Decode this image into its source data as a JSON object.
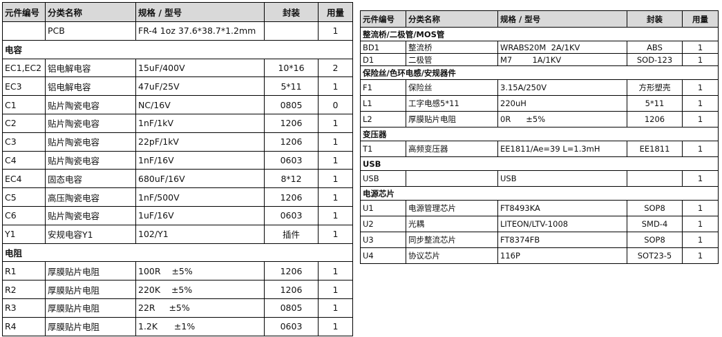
{
  "left": {
    "header": [
      "元件编号",
      "分类名称",
      "规格 / 型号",
      "封装",
      "用量"
    ],
    "rows": [
      [
        null,
        "PCB",
        "FR-4 1oz 37.6*38.7*1.2mm",
        null,
        "1"
      ],
      [
        "电容"
      ],
      [
        "EC1,EC2",
        "铝电解电容",
        "15uF/400V",
        "10*16",
        "2"
      ],
      [
        "EC3",
        "铝电解电容",
        "47uF/25V",
        "5*11",
        "1"
      ],
      [
        "C1",
        "贴片陶瓷电容",
        "NC/16V",
        "0805",
        "0"
      ],
      [
        "C2",
        "贴片陶瓷电容",
        "1nF/1kV",
        "1206",
        "1"
      ],
      [
        "C3",
        "贴片陶瓷电容",
        "22pF/1kV",
        "1206",
        "1"
      ],
      [
        "C4",
        "贴片陶瓷电容",
        "1nF/16V",
        "0603",
        "1"
      ],
      [
        "EC4",
        "固态电容",
        "680uF/16V",
        "8*12",
        "1"
      ],
      [
        "C5",
        "高压陶瓷电容",
        "1nF/500V",
        "1206",
        "1"
      ],
      [
        "C6",
        "贴片陶瓷电容",
        "1uF/16V",
        "0603",
        "1"
      ],
      [
        "Y1",
        "安规电容Y1",
        "102/Y1",
        "插件",
        "1"
      ],
      [
        "电阻"
      ],
      [
        "R1",
        "厚膜贴片电阻",
        "100R    ±5%",
        "1206",
        "1"
      ],
      [
        "R2",
        "厚膜贴片电阻",
        "220K    ±5%",
        "1206",
        "1"
      ],
      [
        "R3",
        "厚膜贴片电阻",
        "22R     ±5%",
        "0805",
        "1"
      ],
      [
        "R4",
        "厚膜贴片电阻",
        "1.2K      ±1%",
        "0603",
        "1"
      ]
    ]
  },
  "right": {
    "header": [
      "元件编号",
      "分类名称",
      "规格 / 型号",
      "封装",
      "用量"
    ],
    "rows": [
      [
        "整流桥/二极管/MOS管"
      ],
      [
        "BD1",
        "整流桥",
        "WRABS20M  2A/1KV",
        "ABS",
        "1"
      ],
      [
        "D1",
        "二极管",
        "M7        1A/1KV",
        "SOD-123",
        "1"
      ],
      [
        "保险丝/色环电感/安规器件"
      ],
      [
        "F1",
        "保险丝",
        "3.15A/250V",
        "方形塑壳",
        "1"
      ],
      [
        "L1",
        "工字电感5*11",
        "220uH",
        "5*11",
        "1"
      ],
      [
        "L2",
        "厚膜贴片电阻",
        "0R      ±5%",
        "1206",
        "1"
      ],
      [
        "变压器"
      ],
      [
        "T1",
        "高频变压器",
        "EE1811/Ae=39 L=1.3mH",
        "EE1811",
        "1"
      ],
      [
        "USB"
      ],
      [
        "USB",
        null,
        "USB",
        null,
        "1"
      ],
      [
        "电源芯片"
      ],
      [
        "U1",
        "电源管理芯片",
        "FT8493KA",
        "SOP8",
        "1"
      ],
      [
        "U2",
        "光耦",
        "LITEON/LTV-1008",
        "SMD-4",
        "1"
      ],
      [
        "U3",
        "同步整流芯片",
        "FT8374FB",
        "SOP8",
        "1"
      ],
      [
        "U4",
        "协议芯片",
        "116P",
        "SOT23-5",
        "1"
      ]
    ]
  }
}
